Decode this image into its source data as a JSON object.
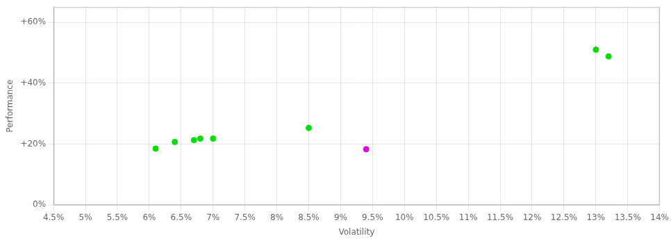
{
  "chart_data": {
    "type": "scatter",
    "xlabel": "Volatility",
    "ylabel": "Performance",
    "xlim": [
      0.045,
      0.14
    ],
    "ylim": [
      0.0,
      0.65
    ],
    "xticks": [
      {
        "value": 0.045,
        "label": "4.5%"
      },
      {
        "value": 0.05,
        "label": "5%"
      },
      {
        "value": 0.055,
        "label": "5.5%"
      },
      {
        "value": 0.06,
        "label": "6%"
      },
      {
        "value": 0.065,
        "label": "6.5%"
      },
      {
        "value": 0.07,
        "label": "7%"
      },
      {
        "value": 0.075,
        "label": "7.5%"
      },
      {
        "value": 0.08,
        "label": "8%"
      },
      {
        "value": 0.085,
        "label": "8.5%"
      },
      {
        "value": 0.09,
        "label": "9%"
      },
      {
        "value": 0.095,
        "label": "9.5%"
      },
      {
        "value": 0.1,
        "label": "10%"
      },
      {
        "value": 0.105,
        "label": "10.5%"
      },
      {
        "value": 0.11,
        "label": "11%"
      },
      {
        "value": 0.115,
        "label": "11.5%"
      },
      {
        "value": 0.12,
        "label": "12%"
      },
      {
        "value": 0.125,
        "label": "12.5%"
      },
      {
        "value": 0.13,
        "label": "13%"
      },
      {
        "value": 0.135,
        "label": "13.5%"
      },
      {
        "value": 0.14,
        "label": "14%"
      }
    ],
    "yticks": [
      {
        "value": 0.0,
        "label": "0%"
      },
      {
        "value": 0.2,
        "label": "+20%"
      },
      {
        "value": 0.4,
        "label": "+40%"
      },
      {
        "value": 0.6,
        "label": "+60%"
      }
    ],
    "grid": true,
    "series": [
      {
        "color": "#00dd00",
        "x": [
          0.061,
          0.064,
          0.067,
          0.068,
          0.07,
          0.085,
          0.13,
          0.132
        ],
        "values": [
          0.185,
          0.207,
          0.213,
          0.218,
          0.218,
          0.253,
          0.51,
          0.488
        ]
      },
      {
        "color": "#dd00dd",
        "x": [
          0.094
        ],
        "values": [
          0.183
        ]
      }
    ]
  }
}
